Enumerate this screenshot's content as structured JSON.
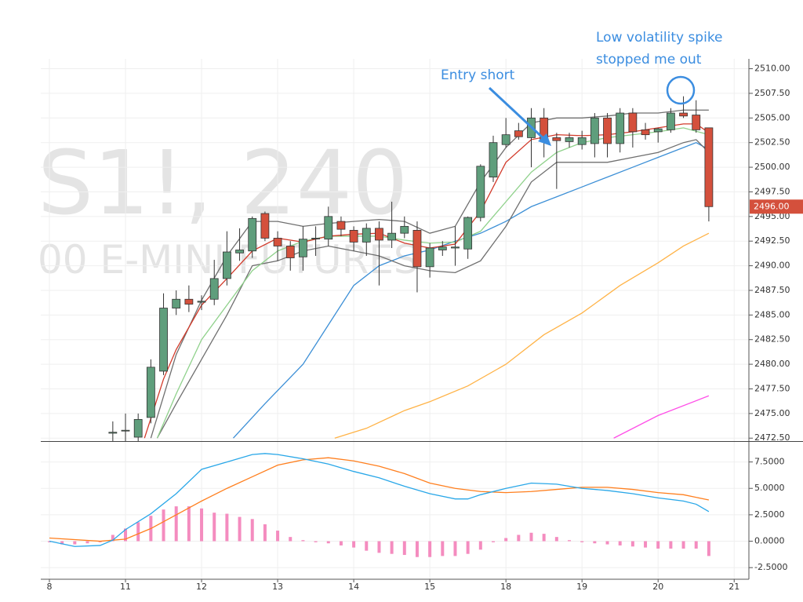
{
  "chart_data": [
    {
      "type": "candlestick",
      "watermark_title": "S1!, 240",
      "watermark_subtitle": "00 E-MINI FUTURES",
      "annotations": [
        "Entry short",
        "Low volatility spike",
        "stopped me out"
      ],
      "xlim": [
        -0.68,
        55.16
      ],
      "ylim": [
        2472.2,
        2511.0
      ],
      "yticks": [
        {
          "value": 2472.5,
          "label": "2472.50"
        },
        {
          "value": 2475,
          "label": "2475.00"
        },
        {
          "value": 2477.5,
          "label": "2477.50"
        },
        {
          "value": 2480,
          "label": "2480.00"
        },
        {
          "value": 2482.5,
          "label": "2482.50"
        },
        {
          "value": 2485,
          "label": "2485.00"
        },
        {
          "value": 2487.5,
          "label": "2487.50"
        },
        {
          "value": 2490,
          "label": "2490.00"
        },
        {
          "value": 2492.5,
          "label": "2492.50"
        },
        {
          "value": 2495,
          "label": "2495.00"
        },
        {
          "value": 2497.5,
          "label": "2497.50"
        },
        {
          "value": 2500,
          "label": "2500.00"
        },
        {
          "value": 2502.5,
          "label": "2502.50"
        },
        {
          "value": 2505,
          "label": "2505.00"
        },
        {
          "value": 2507.5,
          "label": "2507.50"
        },
        {
          "value": 2510,
          "label": "2510.00"
        }
      ],
      "grid": true,
      "last_price": {
        "value": 2496,
        "label": "2496.00"
      },
      "up_color": "#5f9e7c",
      "down_color": "#d4503c",
      "candles": {
        "x": [
          5,
          6,
          7,
          8,
          9,
          10,
          11,
          12,
          13,
          14,
          15,
          16,
          17,
          18,
          19,
          20,
          21,
          22,
          23,
          24,
          25,
          26,
          27,
          28,
          29,
          30,
          31,
          32,
          33,
          34,
          35,
          36,
          37,
          38,
          39,
          40,
          41,
          42,
          43,
          44,
          45,
          46,
          47,
          48,
          49,
          50,
          51,
          52
        ],
        "open": [
          2473.0,
          2473.3,
          2472.6,
          2474.6,
          2479.3,
          2485.7,
          2486.6,
          2486.3,
          2486.6,
          2488.7,
          2491.3,
          2491.5,
          2495.3,
          2492.8,
          2492.0,
          2490.9,
          2492.8,
          2492.7,
          2494.5,
          2493.6,
          2492.4,
          2493.8,
          2492.6,
          2493.3,
          2493.6,
          2489.9,
          2491.6,
          2491.8,
          2491.7,
          2494.9,
          2499.0,
          2502.3,
          2503.7,
          2503.0,
          2505.0,
          2503.0,
          2502.6,
          2502.3,
          2502.4,
          2505.0,
          2502.4,
          2505.5,
          2503.8,
          2503.6,
          2503.8,
          2505.5,
          2505.3,
          2504.0
        ],
        "high": [
          2474.2,
          2475.0,
          2475.0,
          2480.5,
          2487.2,
          2487.5,
          2488.0,
          2487.0,
          2490.6,
          2493.5,
          2493.8,
          2495.0,
          2495.5,
          2493.5,
          2492.5,
          2494.0,
          2494.0,
          2496.0,
          2495.0,
          2494.0,
          2494.3,
          2494.5,
          2496.5,
          2495.0,
          2494.5,
          2492.3,
          2492.5,
          2494.0,
          2495.0,
          2500.3,
          2503.2,
          2505.0,
          2504.5,
          2506.0,
          2506.0,
          2503.5,
          2503.5,
          2503.7,
          2505.5,
          2505.5,
          2506.0,
          2506.0,
          2504.5,
          2504.0,
          2506.0,
          2507.2,
          2506.8,
          2504.0
        ],
        "low": [
          2472.2,
          2472.2,
          2472.2,
          2474.0,
          2478.9,
          2485.0,
          2485.3,
          2485.5,
          2486.0,
          2488.0,
          2490.5,
          2490.8,
          2492.5,
          2490.5,
          2489.5,
          2489.5,
          2491.0,
          2492.0,
          2493.0,
          2491.5,
          2491.0,
          2488.0,
          2491.8,
          2492.8,
          2487.3,
          2488.8,
          2491.0,
          2490.0,
          2490.7,
          2494.5,
          2498.5,
          2502.0,
          2502.8,
          2500.0,
          2501.0,
          2497.8,
          2502.0,
          2501.8,
          2501.0,
          2501.0,
          2501.5,
          2502.0,
          2502.8,
          2502.5,
          2503.5,
          2505.0,
          2503.5,
          2494.5
        ],
        "close": [
          2473.1,
          2473.3,
          2474.4,
          2479.7,
          2485.7,
          2486.6,
          2486.1,
          2486.4,
          2488.7,
          2491.4,
          2491.6,
          2494.8,
          2492.8,
          2492.0,
          2490.8,
          2492.7,
          2492.8,
          2495.0,
          2493.7,
          2492.4,
          2493.8,
          2492.6,
          2493.3,
          2494.0,
          2489.9,
          2491.8,
          2491.9,
          2491.9,
          2494.9,
          2500.1,
          2502.5,
          2503.3,
          2503.1,
          2505.0,
          2502.8,
          2502.7,
          2503.0,
          2503.0,
          2505.0,
          2502.4,
          2505.5,
          2503.6,
          2503.3,
          2503.9,
          2505.5,
          2505.2,
          2503.8,
          2496.0
        ]
      },
      "series": [
        {
          "color": "#ffb347",
          "x": [
            22.5,
            25,
            28,
            30,
            33,
            36,
            39,
            42,
            45,
            48,
            50,
            52
          ],
          "values": [
            2472.5,
            2473.5,
            2475.3,
            2476.2,
            2477.8,
            2480,
            2483,
            2485.2,
            2488,
            2490.3,
            2492,
            2493.3
          ]
        },
        {
          "color": "#ff4fe8",
          "x": [
            44.5,
            48,
            52
          ],
          "values": [
            2472.5,
            2474.8,
            2476.8
          ]
        },
        {
          "color": "#3c8fd6",
          "x": [
            14.5,
            17,
            20,
            22,
            24,
            26,
            28,
            30,
            32,
            34,
            36,
            38,
            40,
            42,
            44,
            46,
            48,
            50,
            51,
            52
          ],
          "values": [
            2472.5,
            2476,
            2480,
            2484,
            2488,
            2490,
            2491,
            2491.6,
            2492.5,
            2493.3,
            2494.5,
            2496,
            2497,
            2498,
            2499,
            2500,
            2501,
            2502,
            2502.5,
            2501.8
          ]
        },
        {
          "color": "#6f6f6f",
          "x": [
            8,
            10,
            12,
            14,
            16,
            18,
            20,
            22,
            24,
            26,
            28,
            30,
            32,
            34,
            36,
            38,
            40,
            42,
            44,
            46,
            48,
            50,
            52
          ],
          "values": [
            2472.5,
            2481,
            2486.5,
            2491,
            2494.5,
            2494.5,
            2494,
            2494.3,
            2494.5,
            2494.7,
            2494.5,
            2493.3,
            2494,
            2498.5,
            2502,
            2504.5,
            2505,
            2505,
            2505.2,
            2505.5,
            2505.5,
            2505.8,
            2505.8
          ]
        },
        {
          "color": "#6f6f6f",
          "x": [
            8.5,
            10,
            12,
            14,
            16,
            18,
            20,
            22,
            24,
            26,
            28,
            30,
            32,
            34,
            36,
            38,
            40,
            42,
            44,
            46,
            48,
            50,
            51,
            52
          ],
          "values": [
            2472.5,
            2476,
            2480.5,
            2485,
            2490,
            2490.5,
            2491.5,
            2492,
            2491.5,
            2491,
            2490,
            2489.5,
            2489.3,
            2490.5,
            2494,
            2498.5,
            2500.5,
            2500.5,
            2500.5,
            2501,
            2501.5,
            2502.5,
            2502.8,
            2501.5
          ]
        },
        {
          "color": "#8fd18b",
          "x": [
            8.5,
            10,
            12,
            14,
            16,
            18,
            20,
            22,
            24,
            26,
            28,
            30,
            32,
            34,
            36,
            38,
            40,
            42,
            44,
            46,
            48,
            50,
            52
          ],
          "values": [
            2472.5,
            2477,
            2482.5,
            2486,
            2489.5,
            2491.5,
            2492.5,
            2493,
            2493,
            2493,
            2492.6,
            2492.3,
            2492.4,
            2493.5,
            2496.5,
            2499.5,
            2501.5,
            2502.5,
            2503,
            2503.3,
            2503.6,
            2504,
            2503.3
          ]
        },
        {
          "color": "#d23a2a",
          "x": [
            7.5,
            9,
            10,
            12,
            14,
            16,
            18,
            20,
            22,
            24,
            26,
            28,
            30,
            32,
            34,
            36,
            38,
            40,
            42,
            44,
            46,
            48,
            50,
            51,
            52
          ],
          "values": [
            2472.5,
            2478.5,
            2481.5,
            2486,
            2488.7,
            2491.5,
            2492.8,
            2492.4,
            2493,
            2493.2,
            2493.3,
            2492.3,
            2491.8,
            2492.2,
            2495.5,
            2500.5,
            2502.8,
            2503.3,
            2503.2,
            2503.3,
            2503.6,
            2504,
            2504.4,
            2504.4,
            2503.5
          ]
        }
      ]
    },
    {
      "type": "combo",
      "xlim": [
        -0.68,
        55.16
      ],
      "xticks": [
        {
          "value": 0,
          "label": "8"
        },
        {
          "value": 6,
          "label": "11"
        },
        {
          "value": 12,
          "label": "12"
        },
        {
          "value": 18,
          "label": "13"
        },
        {
          "value": 24,
          "label": "14"
        },
        {
          "value": 30,
          "label": "15"
        },
        {
          "value": 36,
          "label": "18"
        },
        {
          "value": 42,
          "label": "19"
        },
        {
          "value": 48,
          "label": "20"
        },
        {
          "value": 54,
          "label": "21"
        }
      ],
      "ylim": [
        -3.6,
        9.4
      ],
      "yticks": [
        {
          "value": -2.5,
          "label": "-2.5000"
        },
        {
          "value": 0,
          "label": "0.0000"
        },
        {
          "value": 2.5,
          "label": "2.5000"
        },
        {
          "value": 5,
          "label": "5.0000"
        },
        {
          "value": 7.5,
          "label": "7.5000"
        }
      ],
      "grid": true,
      "series": [
        {
          "type": "bar",
          "color": "#f48cbf",
          "x": [
            0,
            1,
            2,
            3,
            4,
            5,
            6,
            7,
            8,
            9,
            10,
            11,
            12,
            13,
            14,
            15,
            16,
            17,
            18,
            19,
            20,
            21,
            22,
            23,
            24,
            25,
            26,
            27,
            28,
            29,
            30,
            31,
            32,
            33,
            34,
            35,
            36,
            37,
            38,
            39,
            40,
            41,
            42,
            43,
            44,
            45,
            46,
            47,
            48,
            49,
            50,
            51,
            52
          ],
          "values": [
            -0.1,
            -0.3,
            -0.3,
            -0.2,
            -0.1,
            0.6,
            1.2,
            1.8,
            2.4,
            3.0,
            3.3,
            3.3,
            3.1,
            2.7,
            2.6,
            2.3,
            2.1,
            1.6,
            1.0,
            0.4,
            0.1,
            -0.1,
            -0.2,
            -0.4,
            -0.6,
            -0.9,
            -1.1,
            -1.2,
            -1.3,
            -1.5,
            -1.5,
            -1.4,
            -1.4,
            -1.2,
            -0.8,
            -0.1,
            0.3,
            0.6,
            0.8,
            0.7,
            0.4,
            0.1,
            -0.1,
            -0.2,
            -0.3,
            -0.4,
            -0.5,
            -0.6,
            -0.7,
            -0.7,
            -0.7,
            -0.7,
            -1.4
          ]
        },
        {
          "type": "line",
          "color": "#ff7f1e",
          "x": [
            0,
            4,
            6,
            8,
            10,
            12,
            14,
            16,
            18,
            20,
            22,
            24,
            26,
            28,
            30,
            32,
            34,
            36,
            38,
            40,
            42,
            44,
            46,
            48,
            50,
            52
          ],
          "values": [
            0.3,
            0,
            0.2,
            1.2,
            2.5,
            3.8,
            5.0,
            6.1,
            7.2,
            7.7,
            7.9,
            7.6,
            7.1,
            6.4,
            5.5,
            5.0,
            4.7,
            4.6,
            4.7,
            4.9,
            5.1,
            5.1,
            4.9,
            4.6,
            4.4,
            3.9
          ]
        },
        {
          "type": "line",
          "color": "#29a7e8",
          "x": [
            0,
            2,
            4,
            5,
            6,
            8,
            10,
            12,
            14,
            16,
            17,
            18,
            20,
            22,
            24,
            26,
            28,
            30,
            32,
            33,
            34,
            36,
            38,
            40,
            42,
            44,
            46,
            48,
            50,
            51,
            52
          ],
          "values": [
            0,
            -0.5,
            -0.4,
            0.1,
            1.1,
            2.6,
            4.5,
            6.8,
            7.5,
            8.2,
            8.3,
            8.2,
            7.8,
            7.3,
            6.6,
            6.0,
            5.2,
            4.5,
            4.0,
            4.0,
            4.4,
            5.0,
            5.5,
            5.4,
            5.0,
            4.8,
            4.5,
            4.1,
            3.8,
            3.5,
            2.8
          ]
        }
      ]
    }
  ]
}
